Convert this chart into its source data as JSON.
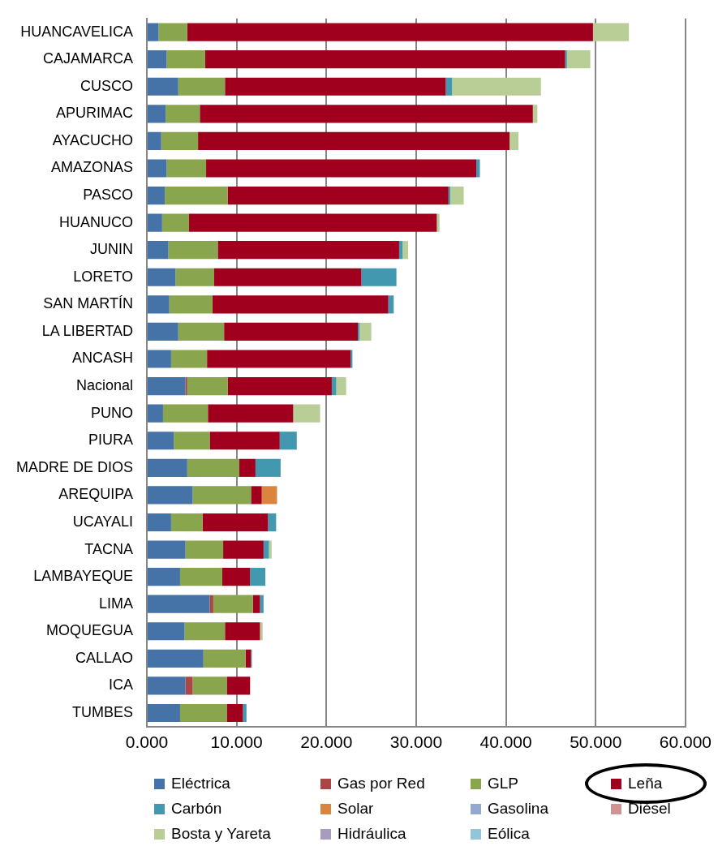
{
  "chart_data": {
    "type": "bar",
    "orientation": "horizontal",
    "stacked": true,
    "categories": [
      "HUANCAVELICA",
      "CAJAMARCA",
      "CUSCO",
      "APURIMAC",
      "AYACUCHO",
      "AMAZONAS",
      "PASCO",
      "HUANUCO",
      "JUNIN",
      "LORETO",
      "SAN MARTÍN",
      "LA LIBERTAD",
      "ANCASH",
      "Nacional",
      "PUNO",
      "PIURA",
      "MADRE DE DIOS",
      "AREQUIPA",
      "UCAYALI",
      "TACNA",
      "LAMBAYEQUE",
      "LIMA",
      "MOQUEGUA",
      "CALLAO",
      "ICA",
      "TUMBES"
    ],
    "series": [
      {
        "name": "Eléctrica",
        "color": "#4572a7",
        "values": [
          1.3,
          2.2,
          3.5,
          2.1,
          1.6,
          2.2,
          2.0,
          1.7,
          2.4,
          3.2,
          2.5,
          3.5,
          2.7,
          4.3,
          1.8,
          3.0,
          4.5,
          5.1,
          2.7,
          4.3,
          3.7,
          7.0,
          4.2,
          6.3,
          4.3,
          3.7
        ]
      },
      {
        "name": "Gas por Red",
        "color": "#aa4643",
        "values": [
          0,
          0,
          0,
          0,
          0,
          0,
          0,
          0,
          0,
          0,
          0,
          0,
          0,
          0.2,
          0,
          0,
          0,
          0,
          0,
          0,
          0,
          0.4,
          0,
          0,
          0.8,
          0
        ]
      },
      {
        "name": "GLP",
        "color": "#89a54e",
        "values": [
          3.2,
          4.3,
          5.2,
          3.8,
          4.1,
          4.4,
          7.0,
          3.0,
          5.5,
          4.3,
          4.8,
          5.1,
          4.0,
          4.5,
          5.0,
          4.0,
          5.8,
          6.5,
          3.5,
          4.2,
          4.7,
          4.4,
          4.5,
          4.7,
          3.8,
          5.2
        ]
      },
      {
        "name": "Leña",
        "color": "#a0001e",
        "values": [
          45.2,
          40.1,
          24.6,
          37.1,
          34.7,
          30.1,
          24.6,
          27.6,
          20.2,
          16.4,
          19.6,
          14.9,
          16.0,
          11.6,
          9.5,
          7.8,
          1.8,
          1.2,
          7.3,
          4.5,
          3.1,
          0.8,
          3.9,
          0.6,
          2.6,
          1.8
        ]
      },
      {
        "name": "Carbón",
        "color": "#4198af",
        "values": [
          0,
          0.2,
          0.7,
          0,
          0,
          0.4,
          0.2,
          0,
          0.4,
          3.9,
          0.6,
          0.2,
          0.2,
          0.5,
          0,
          1.9,
          2.8,
          0,
          0.9,
          0.6,
          1.7,
          0.4,
          0,
          0.1,
          0,
          0.4
        ]
      },
      {
        "name": "Solar",
        "color": "#db843d",
        "values": [
          0,
          0,
          0,
          0,
          0,
          0,
          0,
          0,
          0,
          0,
          0,
          0,
          0,
          0,
          0,
          0,
          0,
          1.7,
          0,
          0,
          0,
          0,
          0,
          0,
          0,
          0
        ]
      },
      {
        "name": "Gasolina",
        "color": "#93a9cf",
        "values": [
          0,
          0,
          0,
          0,
          0,
          0,
          0,
          0,
          0,
          0,
          0,
          0,
          0,
          0,
          0,
          0,
          0,
          0,
          0,
          0,
          0,
          0,
          0,
          0,
          0,
          0
        ]
      },
      {
        "name": "Diésel",
        "color": "#d19392",
        "values": [
          0,
          0,
          0,
          0,
          0,
          0,
          0,
          0,
          0,
          0,
          0,
          0,
          0,
          0,
          0,
          0,
          0,
          0,
          0,
          0,
          0,
          0,
          0,
          0,
          0,
          0
        ]
      },
      {
        "name": "Bosta y Yareta",
        "color": "#b9cd96",
        "values": [
          4.0,
          2.6,
          9.9,
          0.5,
          1.0,
          0,
          1.5,
          0.3,
          0.6,
          0,
          0,
          1.3,
          0,
          1.1,
          3.0,
          0,
          0,
          0,
          0,
          0.3,
          0,
          0,
          0.3,
          0,
          0,
          0
        ]
      },
      {
        "name": "Hidráulica",
        "color": "#a99bbd",
        "values": [
          0,
          0,
          0,
          0,
          0,
          0,
          0,
          0,
          0,
          0,
          0,
          0,
          0,
          0,
          0,
          0,
          0,
          0,
          0,
          0,
          0,
          0,
          0,
          0,
          0,
          0
        ]
      },
      {
        "name": "Eólica",
        "color": "#92c5d8",
        "values": [
          0,
          0,
          0,
          0,
          0,
          0,
          0,
          0,
          0,
          0,
          0,
          0,
          0,
          0,
          0,
          0,
          0,
          0,
          0,
          0,
          0,
          0,
          0,
          0,
          0,
          0
        ]
      }
    ],
    "xlim": [
      0,
      60
    ],
    "xticks": [
      {
        "value": 0,
        "label": "0.000"
      },
      {
        "value": 10,
        "label": "10.000"
      },
      {
        "value": 20,
        "label": "20.000"
      },
      {
        "value": 30,
        "label": "30.000"
      },
      {
        "value": 40,
        "label": "40.000"
      },
      {
        "value": 50,
        "label": "50.000"
      },
      {
        "value": 60,
        "label": "60.000"
      }
    ],
    "grid": "x",
    "legend": "bottom"
  }
}
